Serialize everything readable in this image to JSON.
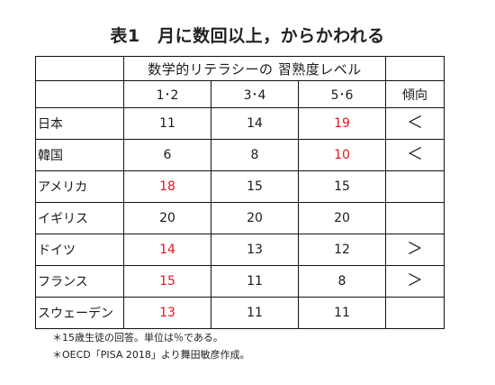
{
  "title": "表1　月に数回以上，からかわれる",
  "header": {
    "skill_group": "数学的リテラシーの 習熟度レベル",
    "levels": [
      "1･2",
      "3･4",
      "5･6"
    ],
    "trend": "傾向"
  },
  "rows": [
    {
      "country": "日本",
      "values": [
        "11",
        "14",
        "19"
      ],
      "red": [
        false,
        false,
        true
      ],
      "trend": "＜"
    },
    {
      "country": "韓国",
      "values": [
        "6",
        "8",
        "10"
      ],
      "red": [
        false,
        false,
        true
      ],
      "trend": "＜"
    },
    {
      "country": "アメリカ",
      "values": [
        "18",
        "15",
        "15"
      ],
      "red": [
        true,
        false,
        false
      ],
      "trend": ""
    },
    {
      "country": "イギリス",
      "values": [
        "20",
        "20",
        "20"
      ],
      "red": [
        false,
        false,
        false
      ],
      "trend": ""
    },
    {
      "country": "ドイツ",
      "values": [
        "14",
        "13",
        "12"
      ],
      "red": [
        true,
        false,
        false
      ],
      "trend": "＞"
    },
    {
      "country": "フランス",
      "values": [
        "15",
        "11",
        "8"
      ],
      "red": [
        true,
        false,
        false
      ],
      "trend": "＞"
    },
    {
      "country": "スウェーデン",
      "values": [
        "13",
        "11",
        "11"
      ],
      "red": [
        true,
        false,
        false
      ],
      "trend": ""
    }
  ],
  "colors": {
    "highlight": "#e8141b",
    "text": "#1a1a1a",
    "border": "#111111"
  },
  "notes": [
    "＊15歳生徒の回答。単位は％である。",
    "＊OECD「PISA 2018」より舞田敏彦作成。"
  ]
}
